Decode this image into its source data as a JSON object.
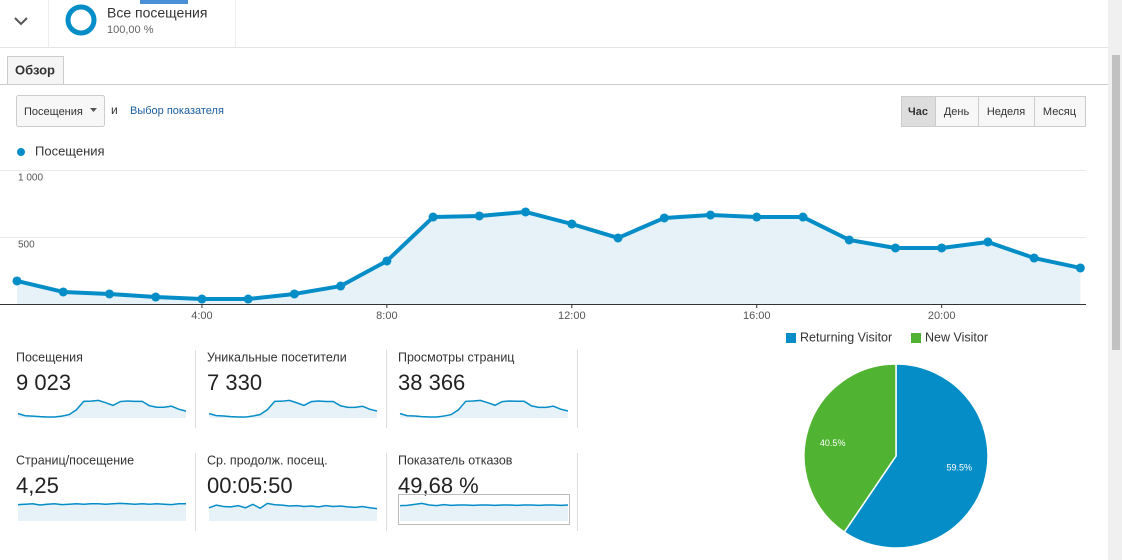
{
  "segment": {
    "title": "Все посещения",
    "share": "100,00 %"
  },
  "tab": "Обзор",
  "controls": {
    "metric": "Посещения",
    "conjunction": "и",
    "pick_metric": "Выбор показателя",
    "periods": [
      "Час",
      "День",
      "Неделя",
      "Месяц"
    ],
    "active_period": 0
  },
  "chart_data": [
    {
      "type": "line",
      "categories": [
        null,
        null,
        null,
        null,
        "4:00",
        null,
        null,
        null,
        "8:00",
        null,
        null,
        null,
        "12:00",
        null,
        null,
        null,
        "16:00",
        null,
        null,
        null,
        "20:00",
        null,
        null,
        null
      ],
      "series": [
        {
          "name": "Посещения",
          "color": "#058dc7",
          "values": [
            172,
            90,
            75,
            52,
            37,
            37,
            75,
            134,
            321,
            649,
            657,
            687,
            597,
            493,
            642,
            664,
            649,
            649,
            478,
            418,
            418,
            463,
            343,
            269
          ]
        }
      ],
      "ylim": [
        0,
        1000
      ],
      "yticks": [
        500,
        {
          "value": 1000,
          "label": "1 000"
        }
      ],
      "grid": true,
      "area": true
    },
    {
      "type": "pie",
      "categories": [
        "Returning Visitor",
        "New Visitor"
      ],
      "values": [
        59.5,
        40.5
      ],
      "value_labels": [
        "59.5%",
        "40.5%"
      ],
      "colors": [
        "#058dc7",
        "#50b432"
      ]
    }
  ],
  "metrics": [
    {
      "label": "Посещения",
      "value": "9 023"
    },
    {
      "label": "Уникальные посетители",
      "value": "7 330",
      "spark": [
        140,
        75,
        62,
        43,
        30,
        30,
        62,
        110,
        265,
        530,
        535,
        560,
        485,
        400,
        520,
        540,
        525,
        525,
        390,
        340,
        340,
        375,
        280,
        220
      ]
    },
    {
      "label": "Просмотры страниц",
      "value": "38 366",
      "spark": [
        720,
        380,
        320,
        220,
        160,
        160,
        320,
        560,
        1350,
        2750,
        2800,
        2900,
        2520,
        2100,
        2700,
        2800,
        2750,
        2750,
        2000,
        1750,
        1750,
        1950,
        1450,
        1150
      ]
    },
    {
      "label": "Страниц/посещение",
      "value": "4,25",
      "spark": [
        4.1,
        4.2,
        4.3,
        4.0,
        4.2,
        4.3,
        4.1,
        4.2,
        4.3,
        4.2,
        4.3,
        4.3,
        4.2,
        4.3,
        4.4,
        4.3,
        4.2,
        4.3,
        4.2,
        4.3,
        4.2,
        4.1,
        4.3,
        4.3
      ]
    },
    {
      "label": "Ср. продолж. посещ.",
      "value": "00:05:50",
      "spark": [
        300,
        360,
        330,
        320,
        350,
        300,
        380,
        290,
        400,
        370,
        360,
        340,
        350,
        330,
        340,
        320,
        350,
        330,
        340,
        320,
        310,
        330,
        300,
        280
      ]
    },
    {
      "label": "Показатель отказов",
      "value": "49,68 %",
      "spark": [
        48,
        49,
        52,
        55,
        50,
        48,
        51,
        49,
        50,
        50,
        49,
        50,
        50,
        49,
        50,
        50,
        49,
        50,
        50,
        49,
        50,
        50,
        49,
        50
      ]
    }
  ]
}
